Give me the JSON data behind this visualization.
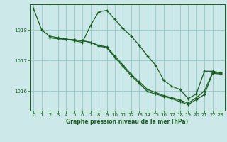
{
  "title": "Graphe pression niveau de la mer (hPa)",
  "bg_color": "#cce8e8",
  "plot_bg_color": "#cce8e8",
  "line_color": "#1a5e20",
  "grid_color": "#99cccc",
  "xlim": [
    -0.5,
    23.5
  ],
  "ylim": [
    1015.35,
    1018.85
  ],
  "yticks": [
    1016,
    1017,
    1018
  ],
  "xticks": [
    0,
    1,
    2,
    3,
    4,
    5,
    6,
    7,
    8,
    9,
    10,
    11,
    12,
    13,
    14,
    15,
    16,
    17,
    18,
    19,
    20,
    21,
    22,
    23
  ],
  "series": [
    {
      "x": [
        0,
        1,
        2,
        3,
        4,
        5,
        6,
        7,
        8,
        9,
        10,
        11,
        12,
        13,
        14,
        15,
        16,
        17,
        18,
        19,
        20,
        21,
        22,
        23
      ],
      "y": [
        1018.7,
        1018.0,
        1017.8,
        1017.75,
        1017.7,
        1017.65,
        1017.6,
        1018.15,
        1018.6,
        1018.65,
        1018.35,
        1018.05,
        1017.8,
        1017.5,
        1017.15,
        1016.85,
        1016.35,
        1016.15,
        1016.05,
        1015.75,
        1015.9,
        1016.65,
        1016.65,
        1016.6
      ]
    },
    {
      "x": [
        2,
        3,
        4,
        5,
        6,
        7,
        8,
        9,
        10,
        11,
        12,
        13,
        14,
        15,
        16,
        17,
        18,
        19,
        20,
        21,
        22,
        23
      ],
      "y": [
        1017.75,
        1017.72,
        1017.7,
        1017.68,
        1017.65,
        1017.6,
        1017.5,
        1017.45,
        1017.15,
        1016.85,
        1016.55,
        1016.3,
        1016.05,
        1015.95,
        1015.85,
        1015.78,
        1015.7,
        1015.6,
        1015.78,
        1016.0,
        1016.6,
        1016.58
      ]
    },
    {
      "x": [
        2,
        3,
        4,
        5,
        6,
        7,
        8,
        9,
        10,
        11,
        12,
        13,
        14,
        15,
        16,
        17,
        18,
        19,
        20,
        21,
        22,
        23
      ],
      "y": [
        1017.75,
        1017.72,
        1017.7,
        1017.68,
        1017.65,
        1017.6,
        1017.48,
        1017.42,
        1017.1,
        1016.8,
        1016.5,
        1016.25,
        1015.98,
        1015.9,
        1015.82,
        1015.75,
        1015.65,
        1015.55,
        1015.72,
        1015.88,
        1016.58,
        1016.56
      ]
    }
  ]
}
